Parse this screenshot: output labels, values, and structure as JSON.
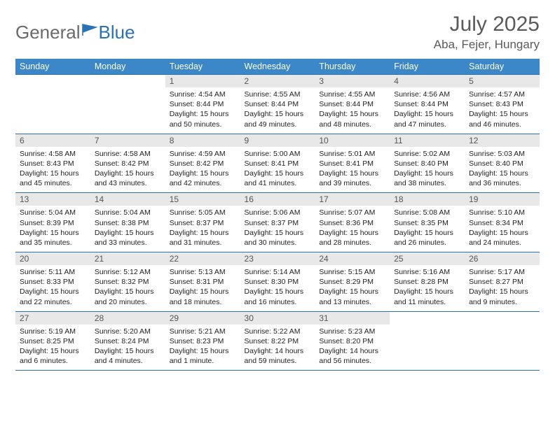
{
  "logo": {
    "text_left": "General",
    "text_right": "Blue"
  },
  "title": "July 2025",
  "subtitle": "Aba, Fejer, Hungary",
  "day_headers": [
    "Sunday",
    "Monday",
    "Tuesday",
    "Wednesday",
    "Thursday",
    "Friday",
    "Saturday"
  ],
  "colors": {
    "header_bg": "#3b87c8",
    "header_text": "#ffffff",
    "rule": "#2a72b5",
    "daynum_bg": "#e8e8e8",
    "daynum_text": "#555555",
    "body_text": "#222222",
    "title_text": "#5a5a5a",
    "logo_gray": "#6a6a6a",
    "logo_blue": "#2a72b5"
  },
  "weeks": [
    [
      null,
      null,
      {
        "n": "1",
        "sunrise": "4:54 AM",
        "sunset": "8:44 PM",
        "day": "15 hours and 50 minutes."
      },
      {
        "n": "2",
        "sunrise": "4:55 AM",
        "sunset": "8:44 PM",
        "day": "15 hours and 49 minutes."
      },
      {
        "n": "3",
        "sunrise": "4:55 AM",
        "sunset": "8:44 PM",
        "day": "15 hours and 48 minutes."
      },
      {
        "n": "4",
        "sunrise": "4:56 AM",
        "sunset": "8:44 PM",
        "day": "15 hours and 47 minutes."
      },
      {
        "n": "5",
        "sunrise": "4:57 AM",
        "sunset": "8:43 PM",
        "day": "15 hours and 46 minutes."
      }
    ],
    [
      {
        "n": "6",
        "sunrise": "4:58 AM",
        "sunset": "8:43 PM",
        "day": "15 hours and 45 minutes."
      },
      {
        "n": "7",
        "sunrise": "4:58 AM",
        "sunset": "8:42 PM",
        "day": "15 hours and 43 minutes."
      },
      {
        "n": "8",
        "sunrise": "4:59 AM",
        "sunset": "8:42 PM",
        "day": "15 hours and 42 minutes."
      },
      {
        "n": "9",
        "sunrise": "5:00 AM",
        "sunset": "8:41 PM",
        "day": "15 hours and 41 minutes."
      },
      {
        "n": "10",
        "sunrise": "5:01 AM",
        "sunset": "8:41 PM",
        "day": "15 hours and 39 minutes."
      },
      {
        "n": "11",
        "sunrise": "5:02 AM",
        "sunset": "8:40 PM",
        "day": "15 hours and 38 minutes."
      },
      {
        "n": "12",
        "sunrise": "5:03 AM",
        "sunset": "8:40 PM",
        "day": "15 hours and 36 minutes."
      }
    ],
    [
      {
        "n": "13",
        "sunrise": "5:04 AM",
        "sunset": "8:39 PM",
        "day": "15 hours and 35 minutes."
      },
      {
        "n": "14",
        "sunrise": "5:04 AM",
        "sunset": "8:38 PM",
        "day": "15 hours and 33 minutes."
      },
      {
        "n": "15",
        "sunrise": "5:05 AM",
        "sunset": "8:37 PM",
        "day": "15 hours and 31 minutes."
      },
      {
        "n": "16",
        "sunrise": "5:06 AM",
        "sunset": "8:37 PM",
        "day": "15 hours and 30 minutes."
      },
      {
        "n": "17",
        "sunrise": "5:07 AM",
        "sunset": "8:36 PM",
        "day": "15 hours and 28 minutes."
      },
      {
        "n": "18",
        "sunrise": "5:08 AM",
        "sunset": "8:35 PM",
        "day": "15 hours and 26 minutes."
      },
      {
        "n": "19",
        "sunrise": "5:10 AM",
        "sunset": "8:34 PM",
        "day": "15 hours and 24 minutes."
      }
    ],
    [
      {
        "n": "20",
        "sunrise": "5:11 AM",
        "sunset": "8:33 PM",
        "day": "15 hours and 22 minutes."
      },
      {
        "n": "21",
        "sunrise": "5:12 AM",
        "sunset": "8:32 PM",
        "day": "15 hours and 20 minutes."
      },
      {
        "n": "22",
        "sunrise": "5:13 AM",
        "sunset": "8:31 PM",
        "day": "15 hours and 18 minutes."
      },
      {
        "n": "23",
        "sunrise": "5:14 AM",
        "sunset": "8:30 PM",
        "day": "15 hours and 16 minutes."
      },
      {
        "n": "24",
        "sunrise": "5:15 AM",
        "sunset": "8:29 PM",
        "day": "15 hours and 13 minutes."
      },
      {
        "n": "25",
        "sunrise": "5:16 AM",
        "sunset": "8:28 PM",
        "day": "15 hours and 11 minutes."
      },
      {
        "n": "26",
        "sunrise": "5:17 AM",
        "sunset": "8:27 PM",
        "day": "15 hours and 9 minutes."
      }
    ],
    [
      {
        "n": "27",
        "sunrise": "5:19 AM",
        "sunset": "8:25 PM",
        "day": "15 hours and 6 minutes."
      },
      {
        "n": "28",
        "sunrise": "5:20 AM",
        "sunset": "8:24 PM",
        "day": "15 hours and 4 minutes."
      },
      {
        "n": "29",
        "sunrise": "5:21 AM",
        "sunset": "8:23 PM",
        "day": "15 hours and 1 minute."
      },
      {
        "n": "30",
        "sunrise": "5:22 AM",
        "sunset": "8:22 PM",
        "day": "14 hours and 59 minutes."
      },
      {
        "n": "31",
        "sunrise": "5:23 AM",
        "sunset": "8:20 PM",
        "day": "14 hours and 56 minutes."
      },
      null,
      null
    ]
  ],
  "labels": {
    "sunrise": "Sunrise: ",
    "sunset": "Sunset: ",
    "daylight": "Daylight: "
  }
}
